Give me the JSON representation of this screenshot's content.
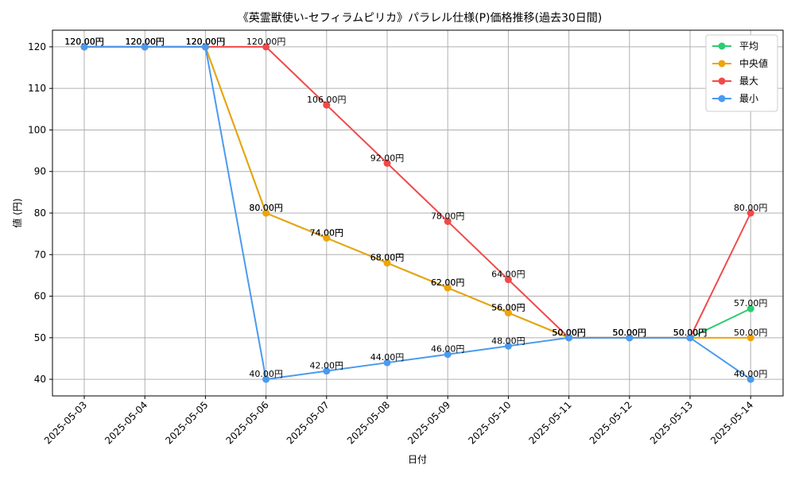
{
  "chart_data": {
    "type": "line",
    "title": "《英霊獣使い-セフィラムピリカ》パラレル仕様(P)価格推移(過去30日間)",
    "xlabel": "日付",
    "ylabel": "値 (円)",
    "categories": [
      "2025-05-03",
      "2025-05-04",
      "2025-05-05",
      "2025-05-06",
      "2025-05-07",
      "2025-05-08",
      "2025-05-09",
      "2025-05-10",
      "2025-05-11",
      "2025-05-12",
      "2025-05-13",
      "2025-05-14"
    ],
    "ylim": [
      36,
      124
    ],
    "yticks": [
      40,
      50,
      60,
      70,
      80,
      90,
      100,
      110,
      120
    ],
    "grid": true,
    "legend_position": "top-right",
    "label_suffix": "円",
    "series": [
      {
        "name": "平均",
        "color": "#2ecc71",
        "values": [
          120,
          120,
          120,
          80,
          74,
          68,
          62,
          56,
          50,
          50,
          50,
          57
        ]
      },
      {
        "name": "中央値",
        "color": "#f0a30a",
        "values": [
          120,
          120,
          120,
          80,
          74,
          68,
          62,
          56,
          50,
          50,
          50,
          50
        ]
      },
      {
        "name": "最大",
        "color": "#f04a4a",
        "values": [
          120,
          120,
          120,
          120,
          106,
          92,
          78,
          64,
          50,
          50,
          50,
          80
        ]
      },
      {
        "name": "最小",
        "color": "#4a9af0",
        "values": [
          120,
          120,
          120,
          40,
          42,
          44,
          46,
          48,
          50,
          50,
          50,
          40
        ]
      }
    ]
  }
}
